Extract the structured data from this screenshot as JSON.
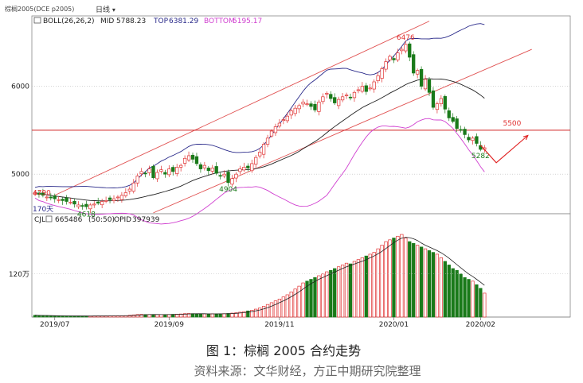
{
  "header": {
    "instrument": "棕榈2005(DCE p2005)",
    "period": "日线",
    "period_chevron": "chevron-down-icon"
  },
  "figure": {
    "title": "图 1：棕榈 2005 合约走势",
    "source": "资料来源：文华财经，方正中期研究院整理"
  },
  "colors": {
    "up": "#e03030",
    "down": "#1a7a1a",
    "boll_mid": "#222222",
    "boll_top": "#2a2a8a",
    "boll_bottom": "#d040d0",
    "channel": "#e05050",
    "hline": "#d02020",
    "forecast": "#e02020"
  },
  "chart_data": [
    {
      "type": "candlestick",
      "panel": "price",
      "legend": {
        "boll": "BOLL(26,26,2)",
        "mid_label": "MID",
        "mid": 5788.23,
        "top_label": "TOP",
        "top": 6381.29,
        "bottom_label": "BOTTOM",
        "bottom": 5195.17
      },
      "y_ticks": [
        5000,
        6000
      ],
      "ylim": [
        4550,
        6800
      ],
      "x_ticks": [
        "2019/07",
        "2019/09",
        "2019/11",
        "2020/01",
        "2020/02"
      ],
      "x_tick_index": [
        5,
        34,
        62,
        91,
        113
      ],
      "annotations": [
        {
          "text": "4790",
          "index": 0,
          "value": 4790,
          "side": "left"
        },
        {
          "text": "4618",
          "index": 13,
          "value": 4618,
          "side": "below"
        },
        {
          "text": "4904",
          "index": 49,
          "value": 4904,
          "side": "below"
        },
        {
          "text": "6476",
          "index": 94,
          "value": 6476,
          "side": "above"
        },
        {
          "text": "5282",
          "index": 113,
          "value": 5282,
          "side": "below"
        },
        {
          "text": "5500",
          "index": 121,
          "value": 5500,
          "side": "above"
        }
      ],
      "bottom_left_label": "170天",
      "hline": 5500,
      "channel_upper": [
        [
          5,
          4760
        ],
        [
          100,
          6740
        ]
      ],
      "channel_lower": [
        [
          30,
          4560
        ],
        [
          126,
          6420
        ]
      ],
      "forecast": [
        [
          113,
          5330
        ],
        [
          117,
          5130
        ],
        [
          125,
          5440
        ]
      ],
      "closes": [
        4790,
        4770,
        4760,
        4740,
        4730,
        4720,
        4710,
        4700,
        4690,
        4680,
        4660,
        4650,
        4640,
        4630,
        4650,
        4660,
        4670,
        4690,
        4700,
        4710,
        4720,
        4740,
        4760,
        4790,
        4830,
        4900,
        4980,
        5030,
        5010,
        5060,
        4960,
        5020,
        5050,
        5000,
        5060,
        5030,
        5080,
        5100,
        5180,
        5210,
        5170,
        5120,
        5060,
        5100,
        5040,
        5070,
        5010,
        4980,
        5000,
        4904,
        4950,
        5000,
        5060,
        5080,
        5070,
        5120,
        5190,
        5250,
        5340,
        5410,
        5490,
        5540,
        5580,
        5620,
        5660,
        5720,
        5750,
        5780,
        5820,
        5800,
        5770,
        5730,
        5820,
        5880,
        5920,
        5860,
        5810,
        5850,
        5880,
        5900,
        5870,
        5930,
        5960,
        6000,
        5940,
        5980,
        6050,
        6120,
        6200,
        6280,
        6340,
        6300,
        6380,
        6420,
        6476,
        6330,
        6150,
        6180,
        6000,
        6080,
        5930,
        5760,
        5800,
        5860,
        5740,
        5640,
        5600,
        5520,
        5500,
        5450,
        5390,
        5410,
        5350,
        5282,
        5300
      ]
    },
    {
      "type": "bar",
      "panel": "volume",
      "legend": {
        "name": "CJL",
        "volume": 665486.0,
        "ratio": "(50:50)",
        "opid_label": "OPID",
        "opid": 397939.0
      },
      "y_ticks": [
        {
          "label": "120万",
          "value": 1200000
        }
      ],
      "ylim": [
        0,
        2500000
      ],
      "values": [
        50000,
        45000,
        40000,
        38000,
        35000,
        33000,
        32000,
        30000,
        30000,
        29000,
        28000,
        28000,
        27000,
        27000,
        28000,
        29000,
        30000,
        30000,
        31000,
        32000,
        33000,
        34000,
        36000,
        40000,
        50000,
        60000,
        70000,
        75000,
        70000,
        72000,
        65000,
        68000,
        70000,
        68000,
        72000,
        75000,
        80000,
        85000,
        95000,
        100000,
        95000,
        90000,
        85000,
        90000,
        88000,
        92000,
        90000,
        92000,
        95000,
        100000,
        110000,
        120000,
        135000,
        150000,
        170000,
        190000,
        220000,
        250000,
        300000,
        350000,
        400000,
        450000,
        500000,
        560000,
        620000,
        700000,
        780000,
        860000,
        950000,
        1000000,
        1050000,
        1100000,
        1150000,
        1200000,
        1260000,
        1300000,
        1350000,
        1400000,
        1450000,
        1500000,
        1480000,
        1550000,
        1600000,
        1650000,
        1700000,
        1750000,
        1800000,
        1900000,
        2000000,
        2100000,
        2150000,
        2200000,
        2250000,
        2300000,
        2200000,
        2100000,
        2050000,
        2000000,
        1950000,
        1900000,
        1850000,
        1800000,
        1750000,
        1650000,
        1550000,
        1450000,
        1350000,
        1300000,
        1200000,
        1100000,
        1050000,
        1000000,
        900000,
        800000,
        665486
      ],
      "up_flags": [
        0,
        0,
        0,
        0,
        0,
        0,
        0,
        0,
        0,
        0,
        0,
        0,
        0,
        0,
        1,
        1,
        1,
        1,
        1,
        1,
        1,
        1,
        1,
        1,
        1,
        1,
        1,
        1,
        0,
        1,
        0,
        1,
        1,
        0,
        1,
        0,
        1,
        1,
        1,
        1,
        0,
        0,
        0,
        1,
        0,
        1,
        0,
        0,
        1,
        0,
        1,
        1,
        1,
        1,
        0,
        1,
        1,
        1,
        1,
        1,
        1,
        1,
        1,
        1,
        1,
        1,
        1,
        1,
        1,
        0,
        0,
        0,
        1,
        1,
        1,
        0,
        0,
        1,
        1,
        1,
        0,
        1,
        1,
        1,
        0,
        1,
        1,
        1,
        1,
        1,
        1,
        0,
        1,
        1,
        1,
        0,
        0,
        1,
        0,
        1,
        0,
        0,
        1,
        1,
        0,
        0,
        0,
        0,
        0,
        0,
        0,
        1,
        0,
        0,
        1
      ],
      "curve": "ma"
    }
  ]
}
